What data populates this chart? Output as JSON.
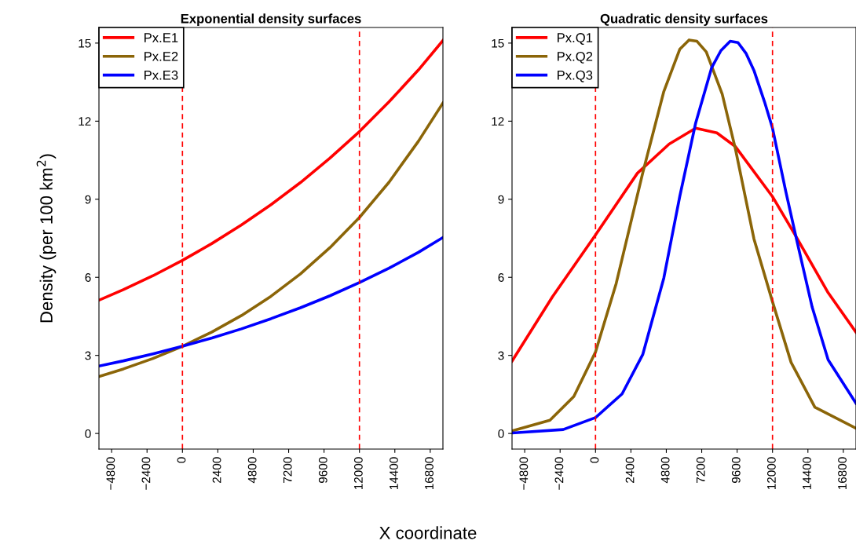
{
  "chart_data": [
    {
      "type": "line",
      "title": "Exponential density surfaces",
      "xlabel": "X coordinate",
      "ylabel": "Density (per 100 km$^{2}$)",
      "xlim": [
        -5660,
        17660
      ],
      "ylim": [
        -0.6,
        15.6
      ],
      "xticks": [
        -4800,
        -2400,
        0,
        2400,
        4800,
        7200,
        9600,
        12000,
        14400,
        16800
      ],
      "yticks": [
        0,
        3,
        6,
        9,
        12,
        15
      ],
      "legend": "top left",
      "grid": false,
      "line_style": "solid",
      "marker": "none",
      "ref_lines": [
        {
          "axis": "x",
          "value": 0,
          "color": "#ff0000",
          "line_style": "dashed"
        },
        {
          "axis": "x",
          "value": 12000,
          "color": "#ff0000",
          "line_style": "dashed"
        }
      ],
      "series": [
        {
          "name": "Px.E1",
          "color": "#ff0000",
          "x": [
            -5660,
            -4000,
            -2000,
            0,
            2000,
            4000,
            6000,
            8000,
            10000,
            12000,
            14000,
            16000,
            17660
          ],
          "values": [
            5.12,
            5.53,
            6.06,
            6.65,
            7.3,
            8.01,
            8.79,
            9.64,
            10.58,
            11.6,
            12.74,
            13.97,
            15.1
          ]
        },
        {
          "name": "Px.E2",
          "color": "#8b6508",
          "x": [
            -5660,
            -4000,
            -2000,
            0,
            2000,
            4000,
            6000,
            8000,
            10000,
            12000,
            14000,
            16000,
            17660
          ],
          "values": [
            2.19,
            2.48,
            2.88,
            3.35,
            3.9,
            4.53,
            5.27,
            6.13,
            7.14,
            8.3,
            9.65,
            11.23,
            12.7
          ]
        },
        {
          "name": "Px.E3",
          "color": "#0000ff",
          "x": [
            -5660,
            -4000,
            -2000,
            0,
            2000,
            4000,
            6000,
            8000,
            10000,
            12000,
            14000,
            16000,
            17660
          ],
          "values": [
            2.59,
            2.79,
            3.06,
            3.35,
            3.67,
            4.02,
            4.41,
            4.83,
            5.29,
            5.8,
            6.35,
            6.96,
            7.53
          ]
        }
      ]
    },
    {
      "type": "line",
      "title": "Quadratic density surfaces",
      "xlim": [
        -5660,
        17660
      ],
      "ylim": [
        -0.6,
        15.6
      ],
      "xticks": [
        -4800,
        -2400,
        0,
        2400,
        4800,
        7200,
        9600,
        12000,
        14400,
        16800
      ],
      "yticks": [
        0,
        3,
        6,
        9,
        12,
        15
      ],
      "legend": "top left",
      "grid": false,
      "line_style": "solid",
      "marker": "none",
      "ref_lines": [
        {
          "axis": "x",
          "value": 0,
          "color": "#ff0000",
          "line_style": "dashed"
        },
        {
          "axis": "x",
          "value": 12000,
          "color": "#ff0000",
          "line_style": "dashed"
        }
      ],
      "series": [
        {
          "name": "Px.Q1",
          "color": "#ff0000",
          "x": [
            -5660,
            -2910,
            0,
            2840,
            4990,
            6790,
            8230,
            9490,
            12000,
            13530,
            15770,
            17660
          ],
          "values": [
            2.78,
            5.26,
            7.63,
            10.0,
            11.12,
            11.73,
            11.55,
            11.02,
            9.1,
            7.63,
            5.41,
            3.89
          ]
        },
        {
          "name": "Px.Q2",
          "color": "#8b6508",
          "x": [
            -5660,
            -3090,
            -1470,
            0,
            1400,
            3200,
            4630,
            5710,
            6340,
            6880,
            7510,
            8590,
            9490,
            10740,
            12000,
            13260,
            14870,
            17660
          ],
          "values": [
            0.1,
            0.51,
            1.42,
            3.13,
            5.76,
            10.01,
            13.14,
            14.76,
            15.12,
            15.07,
            14.66,
            13.04,
            10.92,
            7.48,
            5.06,
            2.73,
            1.01,
            0.2
          ]
        },
        {
          "name": "Px.Q3",
          "color": "#0000ff",
          "x": [
            -5660,
            -2190,
            0,
            1800,
            3200,
            4630,
            5710,
            6790,
            7870,
            8500,
            9130,
            9660,
            10200,
            10740,
            11460,
            12000,
            12900,
            13620,
            14690,
            15770,
            17660
          ],
          "values": [
            0.02,
            0.15,
            0.61,
            1.52,
            3.03,
            5.97,
            9.1,
            11.93,
            14.05,
            14.71,
            15.07,
            15.02,
            14.61,
            13.95,
            12.74,
            11.73,
            9.3,
            7.48,
            4.85,
            2.83,
            1.16
          ]
        }
      ]
    }
  ]
}
